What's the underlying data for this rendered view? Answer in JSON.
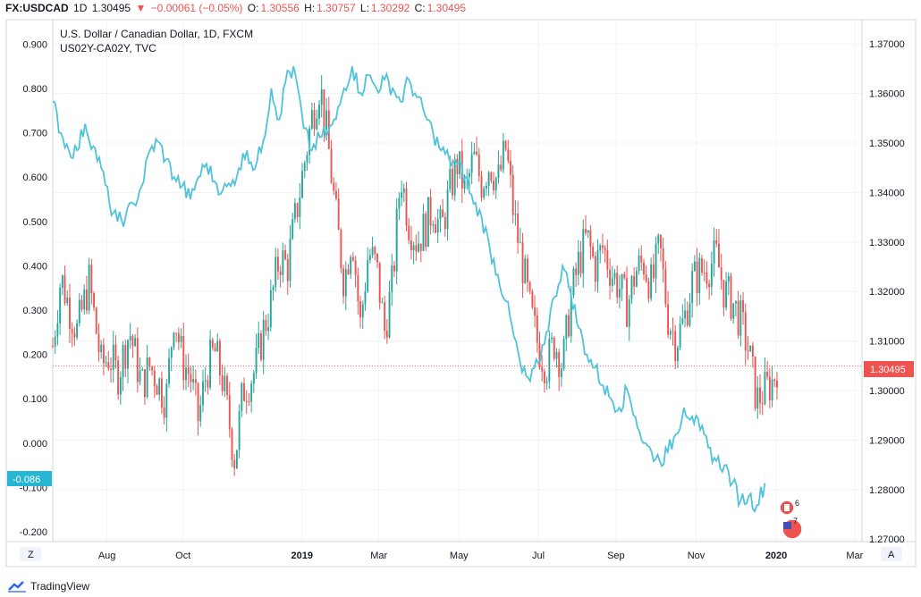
{
  "header": {
    "symbol": "FX:USDCAD",
    "interval": "1D",
    "last": "1.30495",
    "change": "−0.00061 (−0.05%)",
    "open_label": "O:",
    "open": "1.30556",
    "high_label": "H:",
    "high": "1.30757",
    "low_label": "L:",
    "low": "1.30292",
    "close_label": "C:",
    "close": "1.30495"
  },
  "legend": {
    "main": "U.S. Dollar / Canadian Dollar, 1D, FXCM",
    "overlay": "US02Y-CA02Y, TVC"
  },
  "footer": {
    "brand": "TradingView"
  },
  "corner_left": "Z",
  "corner_right": "A",
  "colors": {
    "up": "#26a69a",
    "down": "#ef5350",
    "overlay": "#4fc3d9",
    "price_line": "#ef5350"
  },
  "chart_data": {
    "type": "candlestick",
    "title": "U.S. Dollar / Canadian Dollar, 1D, FXCM",
    "x_ticks": [
      "Aug",
      "Oct",
      "2019",
      "Mar",
      "May",
      "Jul",
      "Sep",
      "Nov",
      "2020",
      "Mar"
    ],
    "right_axis": {
      "name": "USDCAD",
      "ticks": [
        "1.37000",
        "1.36000",
        "1.35000",
        "1.34000",
        "1.33000",
        "1.32000",
        "1.31000",
        "1.30000",
        "1.29000",
        "1.28000",
        "1.27000"
      ],
      "range": [
        1.2695,
        1.3749
      ],
      "last_value": "1.30495"
    },
    "left_axis": {
      "name": "US02Y-CA02Y",
      "ticks": [
        "0.900",
        "0.800",
        "0.700",
        "0.600",
        "0.500",
        "0.400",
        "0.300",
        "0.200",
        "0.100",
        "0.000",
        "-0.100",
        "-0.200"
      ],
      "range": [
        -0.222,
        0.955
      ],
      "last_value": "-0.086"
    },
    "usdcad_close_path": [
      [
        0,
        1.309
      ],
      [
        0.01,
        1.323
      ],
      [
        0.02,
        1.317
      ],
      [
        0.03,
        1.312
      ],
      [
        0.045,
        1.322
      ],
      [
        0.06,
        1.305
      ],
      [
        0.07,
        1.307
      ],
      [
        0.08,
        1.303
      ],
      [
        0.095,
        1.312
      ],
      [
        0.11,
        1.301
      ],
      [
        0.12,
        1.305
      ],
      [
        0.13,
        1.302
      ],
      [
        0.14,
        1.298
      ],
      [
        0.15,
        1.316
      ],
      [
        0.16,
        1.306
      ],
      [
        0.17,
        1.303
      ],
      [
        0.18,
        1.294
      ],
      [
        0.19,
        1.304
      ],
      [
        0.2,
        1.308
      ],
      [
        0.21,
        1.302
      ],
      [
        0.225,
        1.286
      ],
      [
        0.235,
        1.3
      ],
      [
        0.25,
        1.304
      ],
      [
        0.26,
        1.312
      ],
      [
        0.27,
        1.318
      ],
      [
        0.28,
        1.327
      ],
      [
        0.29,
        1.325
      ],
      [
        0.3,
        1.335
      ],
      [
        0.31,
        1.345
      ],
      [
        0.32,
        1.355
      ],
      [
        0.33,
        1.362
      ],
      [
        0.34,
        1.35
      ],
      [
        0.35,
        1.335
      ],
      [
        0.36,
        1.322
      ],
      [
        0.37,
        1.332
      ],
      [
        0.38,
        1.313
      ],
      [
        0.39,
        1.328
      ],
      [
        0.4,
        1.325
      ],
      [
        0.41,
        1.312
      ],
      [
        0.42,
        1.322
      ],
      [
        0.43,
        1.344
      ],
      [
        0.44,
        1.334
      ],
      [
        0.45,
        1.33
      ],
      [
        0.46,
        1.333
      ],
      [
        0.47,
        1.337
      ],
      [
        0.48,
        1.332
      ],
      [
        0.49,
        1.34
      ],
      [
        0.5,
        1.346
      ],
      [
        0.51,
        1.34
      ],
      [
        0.52,
        1.347
      ],
      [
        0.53,
        1.342
      ],
      [
        0.54,
        1.346
      ],
      [
        0.55,
        1.342
      ],
      [
        0.56,
        1.349
      ],
      [
        0.57,
        1.335
      ],
      [
        0.58,
        1.326
      ],
      [
        0.59,
        1.316
      ],
      [
        0.6,
        1.309
      ],
      [
        0.61,
        1.305
      ],
      [
        0.62,
        1.31
      ],
      [
        0.63,
        1.305
      ],
      [
        0.64,
        1.318
      ],
      [
        0.65,
        1.326
      ],
      [
        0.66,
        1.331
      ],
      [
        0.67,
        1.325
      ],
      [
        0.68,
        1.329
      ],
      [
        0.69,
        1.324
      ],
      [
        0.7,
        1.321
      ],
      [
        0.71,
        1.317
      ],
      [
        0.72,
        1.324
      ],
      [
        0.73,
        1.326
      ],
      [
        0.74,
        1.321
      ],
      [
        0.75,
        1.329
      ],
      [
        0.76,
        1.315
      ],
      [
        0.77,
        1.31
      ],
      [
        0.78,
        1.314
      ],
      [
        0.79,
        1.322
      ],
      [
        0.8,
        1.324
      ],
      [
        0.81,
        1.325
      ],
      [
        0.82,
        1.327
      ],
      [
        0.83,
        1.32
      ],
      [
        0.84,
        1.318
      ],
      [
        0.85,
        1.314
      ],
      [
        0.86,
        1.308
      ],
      [
        0.87,
        1.298
      ],
      [
        0.88,
        1.3
      ],
      [
        0.89,
        1.302
      ],
      [
        0.895,
        1.305
      ]
    ],
    "spread_path": [
      [
        0,
        0.77
      ],
      [
        0.01,
        0.7
      ],
      [
        0.02,
        0.66
      ],
      [
        0.03,
        0.66
      ],
      [
        0.04,
        0.72
      ],
      [
        0.05,
        0.67
      ],
      [
        0.06,
        0.62
      ],
      [
        0.07,
        0.54
      ],
      [
        0.08,
        0.5
      ],
      [
        0.09,
        0.51
      ],
      [
        0.1,
        0.54
      ],
      [
        0.11,
        0.58
      ],
      [
        0.12,
        0.66
      ],
      [
        0.13,
        0.68
      ],
      [
        0.14,
        0.64
      ],
      [
        0.15,
        0.6
      ],
      [
        0.16,
        0.58
      ],
      [
        0.17,
        0.55
      ],
      [
        0.18,
        0.6
      ],
      [
        0.19,
        0.63
      ],
      [
        0.2,
        0.59
      ],
      [
        0.21,
        0.57
      ],
      [
        0.22,
        0.58
      ],
      [
        0.23,
        0.62
      ],
      [
        0.24,
        0.66
      ],
      [
        0.25,
        0.62
      ],
      [
        0.26,
        0.68
      ],
      [
        0.27,
        0.8
      ],
      [
        0.28,
        0.73
      ],
      [
        0.29,
        0.84
      ],
      [
        0.3,
        0.83
      ],
      [
        0.31,
        0.71
      ],
      [
        0.32,
        0.66
      ],
      [
        0.33,
        0.69
      ],
      [
        0.34,
        0.7
      ],
      [
        0.35,
        0.73
      ],
      [
        0.36,
        0.8
      ],
      [
        0.37,
        0.85
      ],
      [
        0.38,
        0.79
      ],
      [
        0.39,
        0.83
      ],
      [
        0.4,
        0.8
      ],
      [
        0.41,
        0.82
      ],
      [
        0.42,
        0.8
      ],
      [
        0.43,
        0.77
      ],
      [
        0.44,
        0.82
      ],
      [
        0.45,
        0.78
      ],
      [
        0.46,
        0.74
      ],
      [
        0.47,
        0.7
      ],
      [
        0.48,
        0.66
      ],
      [
        0.49,
        0.64
      ],
      [
        0.5,
        0.63
      ],
      [
        0.51,
        0.6
      ],
      [
        0.52,
        0.54
      ],
      [
        0.53,
        0.51
      ],
      [
        0.54,
        0.44
      ],
      [
        0.55,
        0.38
      ],
      [
        0.56,
        0.32
      ],
      [
        0.57,
        0.24
      ],
      [
        0.58,
        0.16
      ],
      [
        0.59,
        0.14
      ],
      [
        0.6,
        0.18
      ],
      [
        0.61,
        0.25
      ],
      [
        0.62,
        0.33
      ],
      [
        0.63,
        0.4
      ],
      [
        0.64,
        0.34
      ],
      [
        0.65,
        0.26
      ],
      [
        0.66,
        0.2
      ],
      [
        0.67,
        0.17
      ],
      [
        0.68,
        0.13
      ],
      [
        0.69,
        0.1
      ],
      [
        0.7,
        0.08
      ],
      [
        0.71,
        0.12
      ],
      [
        0.72,
        0.06
      ],
      [
        0.73,
        0.0
      ],
      [
        0.74,
        -0.02
      ],
      [
        0.75,
        -0.04
      ],
      [
        0.76,
        -0.02
      ],
      [
        0.77,
        0.02
      ],
      [
        0.78,
        0.08
      ],
      [
        0.79,
        0.06
      ],
      [
        0.8,
        0.03
      ],
      [
        0.81,
        -0.01
      ],
      [
        0.82,
        -0.04
      ],
      [
        0.83,
        -0.05
      ],
      [
        0.84,
        -0.09
      ],
      [
        0.85,
        -0.13
      ],
      [
        0.86,
        -0.12
      ],
      [
        0.87,
        -0.14
      ],
      [
        0.88,
        -0.09
      ]
    ]
  }
}
